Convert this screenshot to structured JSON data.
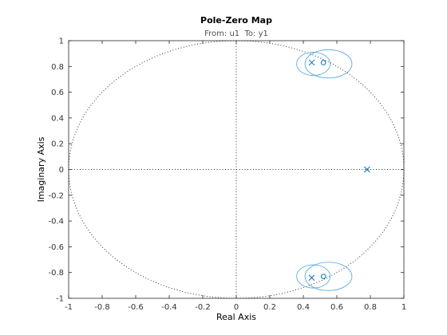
{
  "chart_data": {
    "type": "scatter",
    "title": "Pole-Zero Map",
    "subtitle": "From: u1  To: y1",
    "xlabel": "Real Axis",
    "ylabel": "Imaginary Axis",
    "xlim": [
      -1,
      1
    ],
    "ylim": [
      -1,
      1
    ],
    "x_ticks": [
      "-1",
      "-0.8",
      "-0.6",
      "-0.4",
      "-0.2",
      "0",
      "0.2",
      "0.4",
      "0.6",
      "0.8",
      "1"
    ],
    "y_ticks": [
      "-1",
      "-0.8",
      "-0.6",
      "-0.4",
      "-0.2",
      "0",
      "0.2",
      "0.4",
      "0.6",
      "0.8",
      "1"
    ],
    "grid": false,
    "unit_circle": true,
    "series": [
      {
        "marker": "x",
        "color": "#0072bd",
        "points": [
          {
            "x": 0.45,
            "y": 0.83
          },
          {
            "x": 0.45,
            "y": -0.84
          },
          {
            "x": 0.78,
            "y": 0.0
          }
        ]
      },
      {
        "marker": "o",
        "color": "#0072bd",
        "points": [
          {
            "x": 0.52,
            "y": 0.83
          },
          {
            "x": 0.52,
            "y": -0.83
          }
        ]
      }
    ],
    "uncertainty_regions": [
      {
        "cx": 0.46,
        "cy": 0.82,
        "rx": 0.1,
        "ry": 0.09,
        "color": "#4aa3df"
      },
      {
        "cx": 0.55,
        "cy": 0.82,
        "rx": 0.14,
        "ry": 0.11,
        "color": "#4aa3df"
      },
      {
        "cx": 0.46,
        "cy": -0.83,
        "rx": 0.1,
        "ry": 0.09,
        "color": "#4aa3df"
      },
      {
        "cx": 0.55,
        "cy": -0.83,
        "rx": 0.14,
        "ry": 0.11,
        "color": "#4aa3df"
      }
    ]
  }
}
